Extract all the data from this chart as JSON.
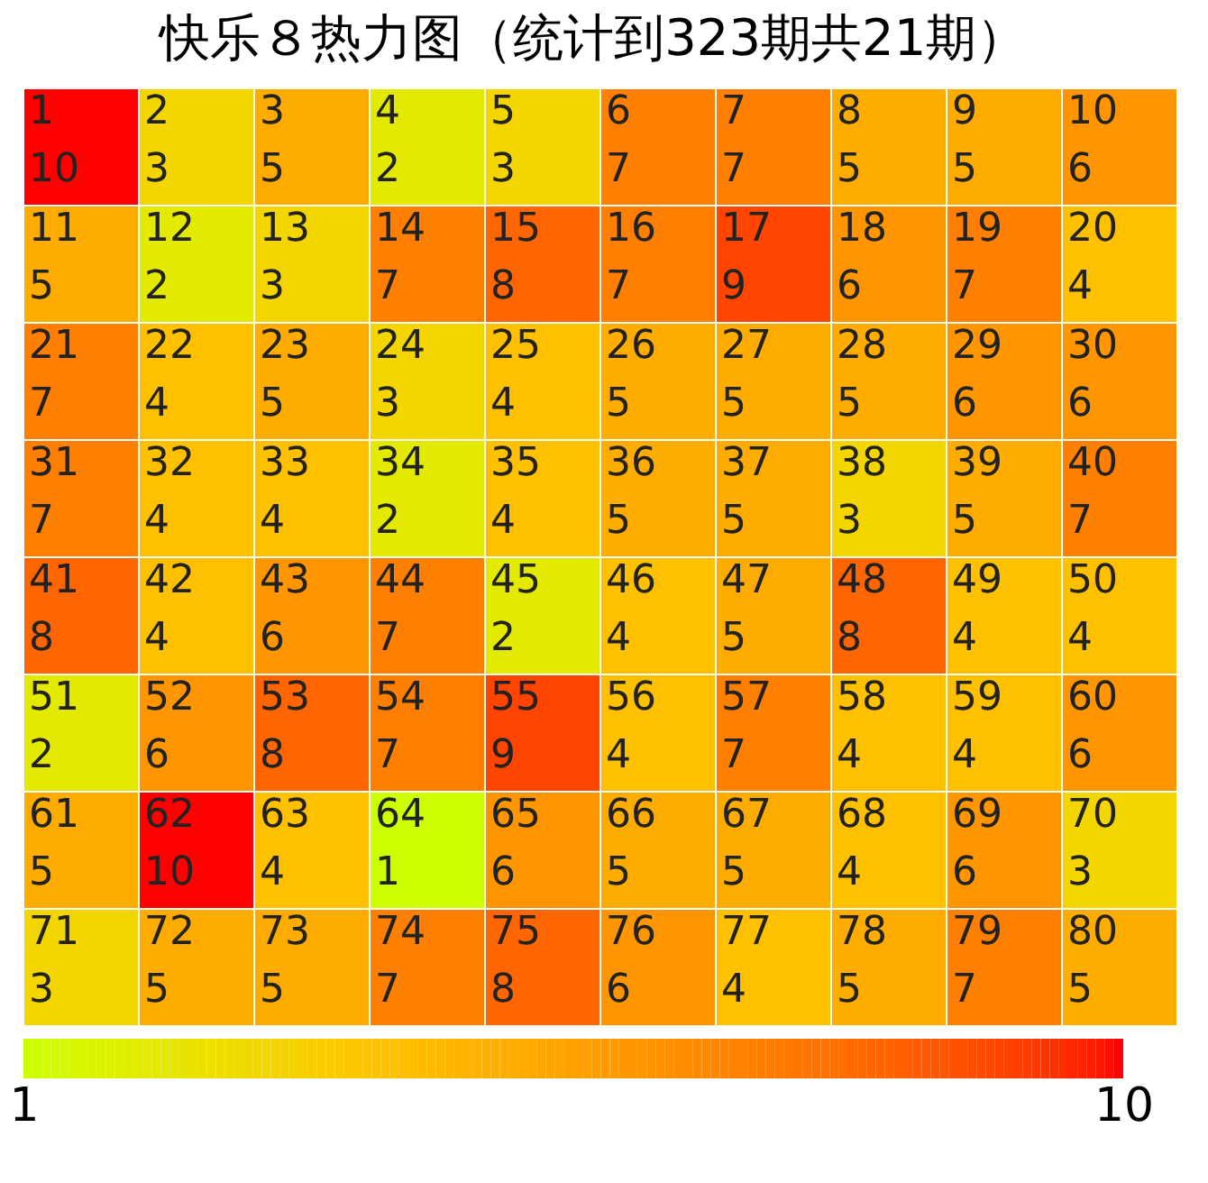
{
  "chart_data": {
    "type": "heatmap",
    "title": "快乐８热力图（统计到323期共21期）",
    "categories": [
      null,
      null,
      null,
      null,
      null,
      null,
      null,
      null,
      null,
      null
    ],
    "y_categories": [
      null,
      null,
      null,
      null,
      null,
      null,
      null,
      null
    ],
    "cells": [
      [
        10,
        3,
        5,
        2,
        3,
        7,
        7,
        5,
        5,
        6
      ],
      [
        5,
        2,
        3,
        7,
        8,
        7,
        9,
        6,
        7,
        4
      ],
      [
        7,
        4,
        5,
        3,
        4,
        5,
        5,
        5,
        6,
        6
      ],
      [
        7,
        4,
        4,
        2,
        4,
        5,
        5,
        3,
        5,
        7
      ],
      [
        8,
        4,
        6,
        7,
        2,
        4,
        5,
        8,
        4,
        4
      ],
      [
        2,
        6,
        8,
        7,
        9,
        4,
        7,
        4,
        4,
        6
      ],
      [
        5,
        10,
        4,
        1,
        6,
        5,
        5,
        4,
        6,
        3
      ],
      [
        3,
        5,
        5,
        7,
        8,
        6,
        4,
        5,
        7,
        5
      ]
    ],
    "cell_labels": [
      [
        "1\n10",
        "2\n3",
        "3\n5",
        "4\n2",
        "5\n3",
        "6\n7",
        "7\n7",
        "8\n5",
        "9\n5",
        "10\n6"
      ],
      [
        "11\n5",
        "12\n2",
        "13\n3",
        "14\n7",
        "15\n8",
        "16\n7",
        "17\n9",
        "18\n6",
        "19\n7",
        "20\n4"
      ],
      [
        "21\n7",
        "22\n4",
        "23\n5",
        "24\n3",
        "25\n4",
        "26\n5",
        "27\n5",
        "28\n5",
        "29\n6",
        "30\n6"
      ],
      [
        "31\n7",
        "32\n4",
        "33\n4",
        "34\n2",
        "35\n4",
        "36\n5",
        "37\n5",
        "38\n3",
        "39\n5",
        "40\n7"
      ],
      [
        "41\n8",
        "42\n4",
        "43\n6",
        "44\n7",
        "45\n2",
        "46\n4",
        "47\n5",
        "48\n8",
        "49\n4",
        "50\n4"
      ],
      [
        "51\n2",
        "52\n6",
        "53\n8",
        "54\n7",
        "55\n9",
        "56\n4",
        "57\n7",
        "58\n4",
        "59\n4",
        "60\n6"
      ],
      [
        "61\n5",
        "62\n10",
        "63\n4",
        "64\n1",
        "65\n6",
        "66\n5",
        "67\n5",
        "68\n4",
        "69\n6",
        "70\n3"
      ],
      [
        "71\n3",
        "72\n5",
        "73\n5",
        "74\n7",
        "75\n8",
        "76\n6",
        "77\n4",
        "78\n5",
        "79\n7",
        "80\n5"
      ]
    ],
    "clim": [
      1,
      10
    ],
    "cticks": [
      1,
      10
    ]
  }
}
